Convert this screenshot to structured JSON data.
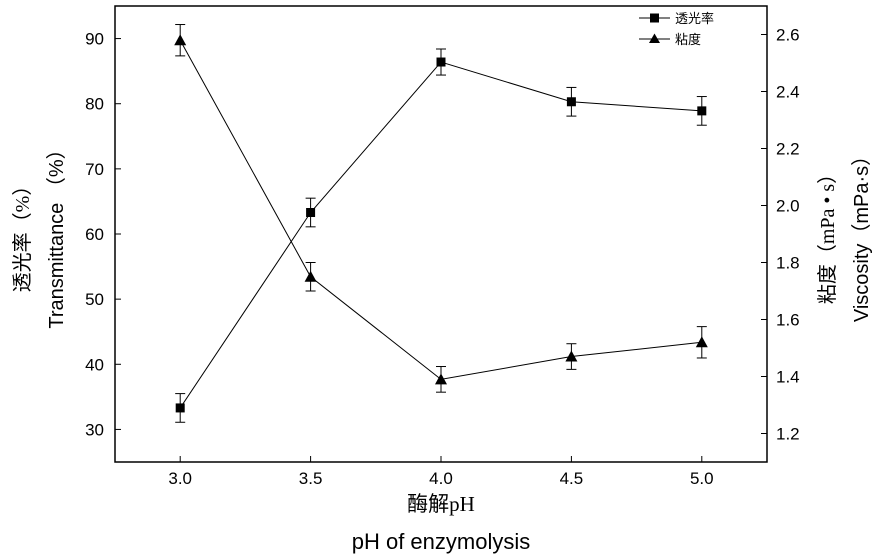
{
  "chart_data": {
    "type": "line",
    "x": [
      3.0,
      3.5,
      4.0,
      4.5,
      5.0
    ],
    "x_tick_labels": [
      "3.0",
      "3.5",
      "4.0",
      "4.5",
      "5.0"
    ],
    "xlim": [
      2.75,
      5.25
    ],
    "xlabel_cn": "酶解pH",
    "xlabel_en": "pH of enzymolysis",
    "left_axis": {
      "label_cn": "透光率（%）",
      "label_en": "Transmittance （%）",
      "ylim": [
        25,
        95
      ],
      "ticks": [
        30,
        40,
        50,
        60,
        70,
        80,
        90
      ]
    },
    "right_axis": {
      "label_cn": "粘度（mPa • s）",
      "label_en": "Viscosity（mPa·s）",
      "ylim": [
        1.1,
        2.7
      ],
      "ticks": [
        1.2,
        1.4,
        1.6,
        1.8,
        2.0,
        2.2,
        2.4,
        2.6
      ],
      "tick_labels": [
        "1.2",
        "1.4",
        "1.6",
        "1.8",
        "2.0",
        "2.2",
        "2.4",
        "2.6"
      ]
    },
    "series": [
      {
        "name": "透光率",
        "axis": "left",
        "marker": "square",
        "values": [
          33.3,
          63.3,
          86.4,
          80.3,
          78.9
        ],
        "errors": [
          2.2,
          2.2,
          2.0,
          2.2,
          2.2
        ]
      },
      {
        "name": "粘度",
        "axis": "right",
        "marker": "triangle",
        "values": [
          2.58,
          1.75,
          1.39,
          1.47,
          1.52
        ],
        "errors": [
          0.055,
          0.05,
          0.045,
          0.045,
          0.055
        ]
      }
    ],
    "legend_position": "top-right",
    "grid": false
  }
}
